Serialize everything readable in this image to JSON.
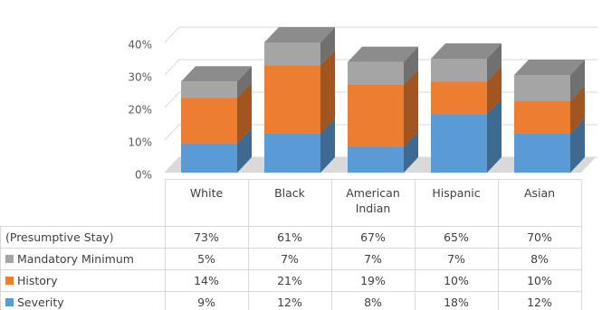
{
  "chart_data": {
    "type": "bar3d_stacked_table",
    "categories": [
      "White",
      "Black",
      "American Indian",
      "Hispanic",
      "Asian"
    ],
    "series": [
      {
        "name": "(Presumptive Stay)",
        "color": null,
        "values": [
          73,
          61,
          67,
          65,
          70
        ],
        "value_labels": [
          "73%",
          "61%",
          "67%",
          "65%",
          "70%"
        ]
      },
      {
        "name": "Mandatory Minimum",
        "color": "#a5a5a5",
        "values": [
          5,
          7,
          7,
          7,
          8
        ],
        "value_labels": [
          "5%",
          "7%",
          "7%",
          "7%",
          "8%"
        ]
      },
      {
        "name": "History",
        "color": "#ed7d31",
        "values": [
          14,
          21,
          19,
          10,
          10
        ],
        "value_labels": [
          "14%",
          "21%",
          "19%",
          "10%",
          "10%"
        ]
      },
      {
        "name": "Severity",
        "color": "#5b9bd5",
        "values": [
          9,
          12,
          8,
          18,
          12
        ],
        "value_labels": [
          "9%",
          "12%",
          "8%",
          "18%",
          "12%"
        ]
      }
    ],
    "ylim": [
      0,
      40
    ],
    "yticks": [
      {
        "value": 0,
        "label": "0%"
      },
      {
        "value": 10,
        "label": "10%"
      },
      {
        "value": 20,
        "label": "20%"
      },
      {
        "value": 30,
        "label": "30%"
      },
      {
        "value": 40,
        "label": "40%"
      }
    ],
    "grid": true
  }
}
